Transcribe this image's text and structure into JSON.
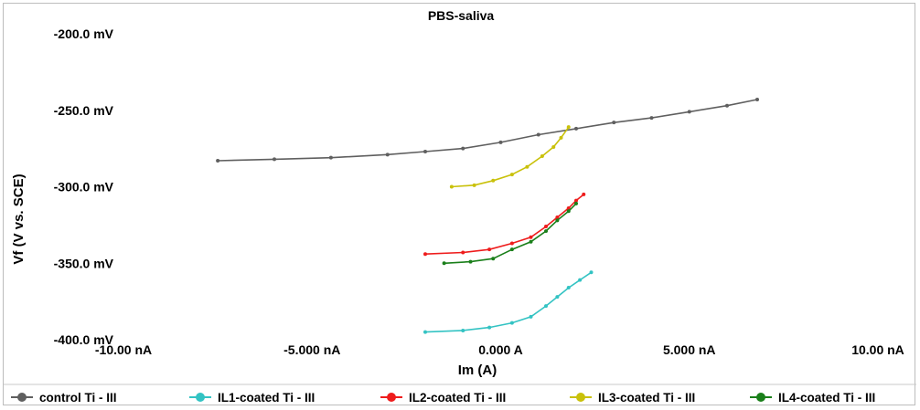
{
  "chart_data": {
    "type": "scatter",
    "title": "PBS-saliva",
    "xlabel": "Im (A)",
    "ylabel": "Vf (V vs. SCE)",
    "xlim": [
      -10,
      10
    ],
    "ylim": [
      -400,
      -200
    ],
    "x_ticks": [
      {
        "value": -10,
        "label": "-10.00 nA"
      },
      {
        "value": -5,
        "label": "-5.000 nA"
      },
      {
        "value": 0,
        "label": "0.000 A"
      },
      {
        "value": 5,
        "label": "5.000 nA"
      },
      {
        "value": 10,
        "label": "10.00 nA"
      }
    ],
    "y_ticks": [
      {
        "value": -200,
        "label": "-200.0 mV"
      },
      {
        "value": -250,
        "label": "-250.0 mV"
      },
      {
        "value": -300,
        "label": "-300.0 mV"
      },
      {
        "value": -350,
        "label": "-350.0 mV"
      },
      {
        "value": -400,
        "label": "-400.0 mV"
      }
    ],
    "grid": false,
    "legend_position": "bottom",
    "series": [
      {
        "name": "control Ti - III",
        "color": "#5f5f5f",
        "x": [
          -7.5,
          -6.0,
          -4.5,
          -3.0,
          -2.0,
          -1.0,
          0.0,
          1.0,
          2.0,
          3.0,
          4.0,
          5.0,
          6.0,
          6.8
        ],
        "y": [
          -283,
          -282,
          -281,
          -279,
          -277,
          -275,
          -271,
          -266,
          -262,
          -258,
          -255,
          -251,
          -247,
          -243
        ]
      },
      {
        "name": "IL1-coated Ti - III",
        "color": "#33c3c3",
        "x": [
          -2.0,
          -1.0,
          -0.3,
          0.3,
          0.8,
          1.2,
          1.5,
          1.8,
          2.1,
          2.4
        ],
        "y": [
          -395,
          -394,
          -392,
          -389,
          -385,
          -378,
          -372,
          -366,
          -361,
          -356
        ]
      },
      {
        "name": "IL2-coated Ti - III",
        "color": "#ee1c1c",
        "x": [
          -2.0,
          -1.0,
          -0.3,
          0.3,
          0.8,
          1.2,
          1.5,
          1.8,
          2.0,
          2.2
        ],
        "y": [
          -344,
          -343,
          -341,
          -337,
          -333,
          -326,
          -320,
          -314,
          -309,
          -305
        ]
      },
      {
        "name": "IL3-coated Ti - III",
        "color": "#c9c10b",
        "x": [
          -1.3,
          -0.7,
          -0.2,
          0.3,
          0.7,
          1.1,
          1.4,
          1.6,
          1.8
        ],
        "y": [
          -300,
          -299,
          -296,
          -292,
          -287,
          -280,
          -274,
          -268,
          -261
        ]
      },
      {
        "name": "IL4-coated Ti - III",
        "color": "#1a7f1a",
        "x": [
          -1.5,
          -0.8,
          -0.2,
          0.3,
          0.8,
          1.2,
          1.5,
          1.8,
          2.0
        ],
        "y": [
          -350,
          -349,
          -347,
          -341,
          -336,
          -329,
          -322,
          -316,
          -311
        ]
      }
    ]
  }
}
